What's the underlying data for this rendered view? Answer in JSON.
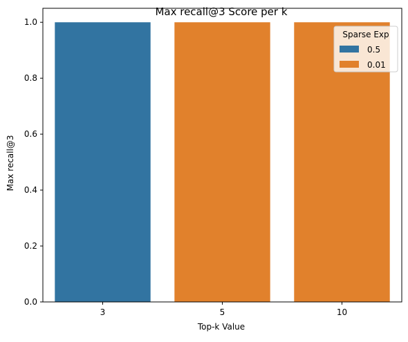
{
  "chart_data": {
    "type": "bar",
    "title": "Max recall@3 Score per k",
    "xlabel": "Top-k Value",
    "ylabel": "Max recall@3",
    "categories": [
      "3",
      "5",
      "10"
    ],
    "values": [
      1.0,
      1.0,
      1.0
    ],
    "bar_series": [
      "0.5",
      "0.01",
      "0.01"
    ],
    "ylim": [
      0.0,
      1.05
    ],
    "yticks": [
      "0.0",
      "0.2",
      "0.4",
      "0.6",
      "0.8",
      "1.0"
    ],
    "grid": false,
    "legend": {
      "title": "Sparse Exp",
      "placement": "top-right",
      "entries": [
        {
          "label": "0.5",
          "color": "#3274a1"
        },
        {
          "label": "0.01",
          "color": "#e1812c"
        }
      ]
    }
  }
}
